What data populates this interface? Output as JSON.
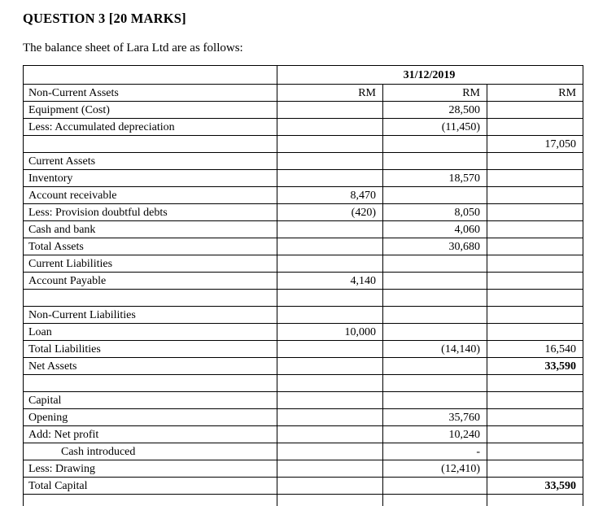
{
  "page": {
    "title": "QUESTION 3 [20 MARKS]",
    "subtitle": "The balance sheet of Lara Ltd are as follows:"
  },
  "colors": {
    "text": "#000000",
    "border": "#000000",
    "background": "#ffffff"
  },
  "table": {
    "date_header": "31/12/2019",
    "currency_label": "RM",
    "rows": [
      {
        "label": "Non-Current Assets",
        "c1": "RM",
        "c2": "RM",
        "c3": "RM"
      },
      {
        "label": "Equipment (Cost)",
        "c1": "",
        "c2": "28,500",
        "c3": ""
      },
      {
        "label": "Less: Accumulated depreciation",
        "c1": "",
        "c2": "(11,450)",
        "c3": ""
      },
      {
        "label": "",
        "c1": "",
        "c2": "",
        "c3": "17,050"
      },
      {
        "label": "Current Assets",
        "c1": "",
        "c2": "",
        "c3": ""
      },
      {
        "label": "Inventory",
        "c1": "",
        "c2": "18,570",
        "c3": ""
      },
      {
        "label": "Account receivable",
        "c1": "8,470",
        "c2": "",
        "c3": ""
      },
      {
        "label": "Less: Provision doubtful debts",
        "c1": "(420)",
        "c2": "8,050",
        "c3": ""
      },
      {
        "label": "Cash and bank",
        "c1": "",
        "c2": "4,060",
        "c3": ""
      },
      {
        "label": "Total Assets",
        "c1": "",
        "c2": "30,680",
        "c3": ""
      },
      {
        "label": "Current Liabilities",
        "c1": "",
        "c2": "",
        "c3": ""
      },
      {
        "label": "Account Payable",
        "c1": "4,140",
        "c2": "",
        "c3": ""
      },
      {
        "label": "",
        "c1": "",
        "c2": "",
        "c3": ""
      },
      {
        "label": "Non-Current Liabilities",
        "c1": "",
        "c2": "",
        "c3": ""
      },
      {
        "label": "Loan",
        "c1": "10,000",
        "c2": "",
        "c3": ""
      },
      {
        "label": "Total Liabilities",
        "c1": "",
        "c2": "(14,140)",
        "c3": "16,540"
      },
      {
        "label": "Net Assets",
        "c1": "",
        "c2": "",
        "c3": "33,590",
        "bold_c3": true
      },
      {
        "label": "",
        "c1": "",
        "c2": "",
        "c3": ""
      },
      {
        "label": "Capital",
        "c1": "",
        "c2": "",
        "c3": ""
      },
      {
        "label": "Opening",
        "c1": "",
        "c2": "35,760",
        "c3": ""
      },
      {
        "label": "Add: Net profit",
        "c1": "",
        "c2": "10,240",
        "c3": ""
      },
      {
        "label": "Cash introduced",
        "c1": "",
        "c2": "-",
        "c3": "",
        "indent": true
      },
      {
        "label": "Less: Drawing",
        "c1": "",
        "c2": "(12,410)",
        "c3": ""
      },
      {
        "label": "Total Capital",
        "c1": "",
        "c2": "",
        "c3": "33,590",
        "bold_c3": true
      },
      {
        "label": "",
        "c1": "",
        "c2": "",
        "c3": ""
      }
    ]
  }
}
